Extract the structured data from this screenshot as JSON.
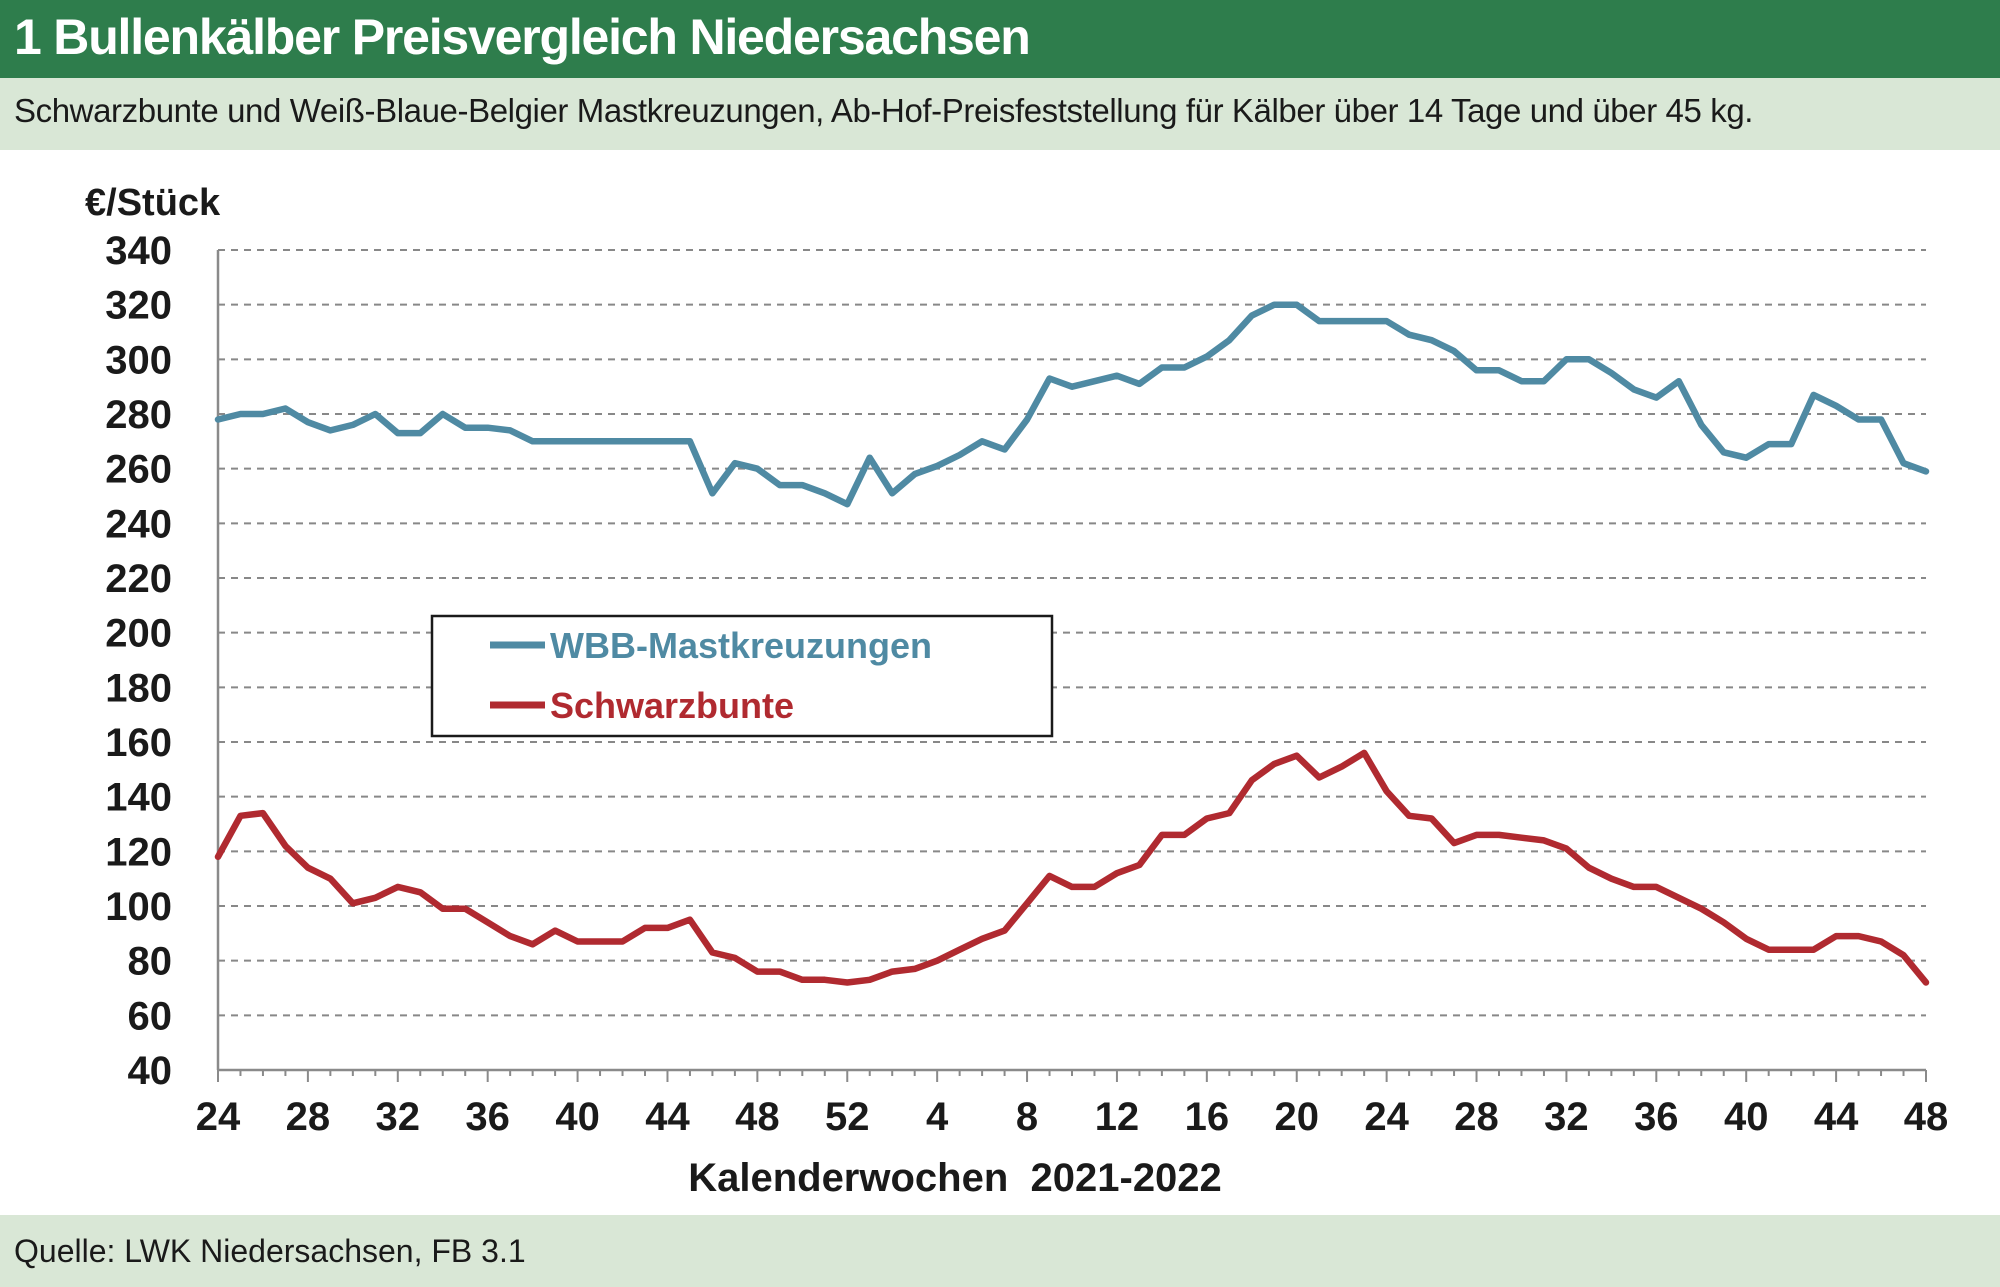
{
  "header": {
    "title": "1 Bullenkälber Preisvergleich Niedersachsen",
    "subtitle": "Schwarzbunte und Weiß-Blaue-Belgier Mastkreuzungen, Ab-Hof-Preisfeststellung für Kälber über 14 Tage und über 45 kg.",
    "source": "Quelle: LWK Niedersachsen, FB 3.1"
  },
  "colors": {
    "header_bg": "#2e7d4c",
    "subheader_bg": "#d9e7d6",
    "wbb": "#4f8aa3",
    "schwarzbunte": "#b02a30"
  },
  "chart_data": {
    "type": "line",
    "ylabel": "€/Stück",
    "xlabel": "Kalenderwochen  2021-2022",
    "ylim": [
      40,
      340
    ],
    "yticks": [
      40,
      60,
      80,
      100,
      120,
      140,
      160,
      180,
      200,
      220,
      240,
      260,
      280,
      300,
      320,
      340
    ],
    "xtick_labels": [
      "24",
      "28",
      "32",
      "36",
      "40",
      "44",
      "48",
      "52",
      "4",
      "8",
      "12",
      "16",
      "20",
      "24",
      "28",
      "32",
      "36",
      "40",
      "44",
      "48"
    ],
    "grid": "horizontal dashed",
    "legend_position": "center-left",
    "x": [
      "24",
      "25",
      "26",
      "27",
      "28",
      "29",
      "30",
      "31",
      "32",
      "33",
      "34",
      "35",
      "36",
      "37",
      "38",
      "39",
      "40",
      "41",
      "42",
      "43",
      "44",
      "45",
      "46",
      "47",
      "48",
      "49",
      "50",
      "51",
      "52",
      "1",
      "2",
      "3",
      "4",
      "5",
      "6",
      "7",
      "8",
      "9",
      "10",
      "11",
      "12",
      "13",
      "14",
      "15",
      "16",
      "17",
      "18",
      "19",
      "20",
      "21",
      "22",
      "23",
      "24",
      "25",
      "26",
      "27",
      "28",
      "29",
      "30",
      "31",
      "32",
      "33",
      "34",
      "35",
      "36",
      "37",
      "38",
      "39",
      "40",
      "41",
      "42",
      "43",
      "44",
      "45",
      "46",
      "47",
      "48"
    ],
    "series": [
      {
        "name": "WBB-Mastkreuzungen",
        "color": "#4f8aa3",
        "values": [
          278,
          280,
          280,
          282,
          277,
          274,
          276,
          280,
          273,
          273,
          280,
          275,
          275,
          274,
          270,
          270,
          270,
          270,
          270,
          270,
          270,
          270,
          251,
          262,
          260,
          254,
          254,
          251,
          247,
          264,
          251,
          258,
          261,
          265,
          270,
          267,
          278,
          293,
          290,
          292,
          294,
          291,
          297,
          297,
          301,
          307,
          316,
          320,
          320,
          314,
          314,
          314,
          314,
          309,
          307,
          303,
          296,
          296,
          292,
          292,
          300,
          300,
          295,
          289,
          286,
          292,
          276,
          266,
          264,
          269,
          269,
          287,
          283,
          278,
          278,
          262,
          259
        ]
      },
      {
        "name": "Schwarzbunte",
        "color": "#b02a30",
        "values": [
          118,
          133,
          134,
          122,
          114,
          110,
          101,
          103,
          107,
          105,
          99,
          99,
          94,
          89,
          86,
          91,
          87,
          87,
          87,
          92,
          92,
          95,
          83,
          81,
          76,
          76,
          73,
          73,
          72,
          73,
          76,
          77,
          80,
          84,
          88,
          91,
          101,
          111,
          107,
          107,
          112,
          115,
          126,
          126,
          132,
          134,
          146,
          152,
          155,
          147,
          151,
          156,
          142,
          133,
          132,
          123,
          126,
          126,
          125,
          124,
          121,
          114,
          110,
          107,
          107,
          103,
          99,
          94,
          88,
          84,
          84,
          84,
          89,
          89,
          87,
          82,
          72
        ]
      }
    ]
  }
}
